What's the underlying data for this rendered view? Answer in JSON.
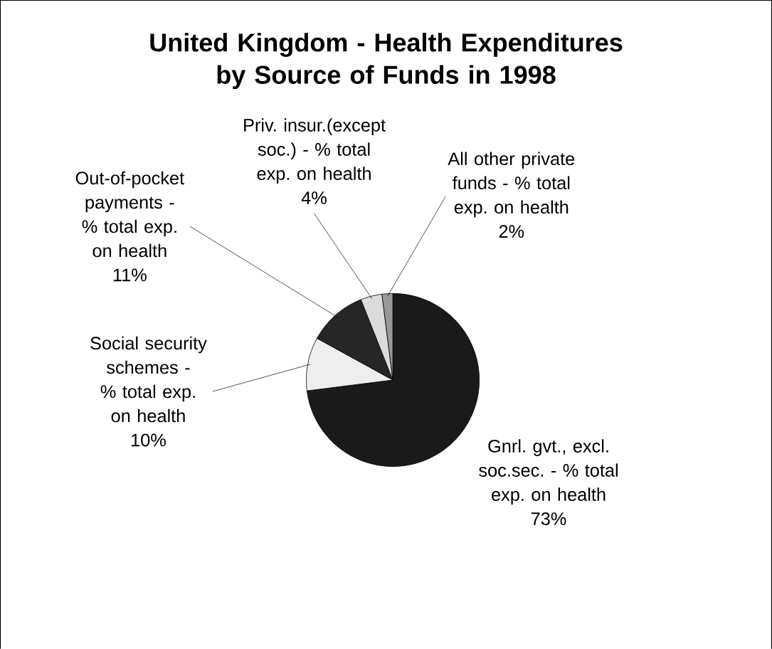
{
  "chart_data": {
    "type": "pie",
    "title": "United Kingdom - Health Expenditures by Source of Funds in 1998",
    "categories": [
      "Gnrl. gvt., excl. soc.sec. - % total exp. on health",
      "Social security schemes - % total exp. on health",
      "Out-of-pocket payments - % total exp. on health",
      "Priv. insur.(except soc.) - % total exp. on health",
      "All other private funds - % total exp. on health"
    ],
    "values": [
      73,
      10,
      11,
      4,
      2
    ],
    "colors": [
      "#1a1a1a",
      "#eeeeee",
      "#262626",
      "#dcdcdc",
      "#999999"
    ],
    "value_labels": [
      "73%",
      "10%",
      "11%",
      "4%",
      "2%"
    ]
  }
}
